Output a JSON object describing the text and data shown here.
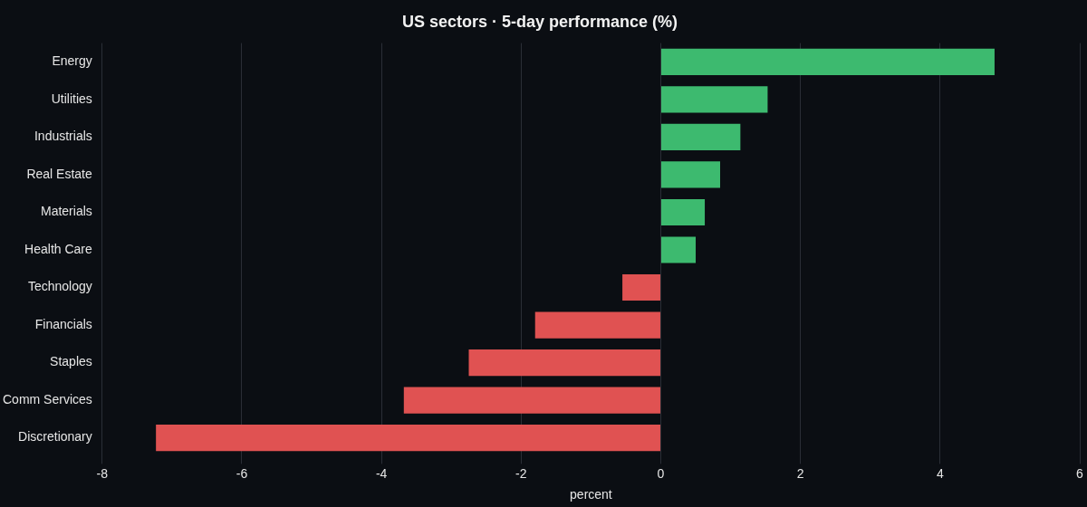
{
  "chart_data": {
    "type": "bar",
    "orientation": "horizontal",
    "title": "US sectors · 5-day performance (%)",
    "xlabel": "percent",
    "categories": [
      "Energy",
      "Utilities",
      "Industrials",
      "Real Estate",
      "Materials",
      "Health Care",
      "Technology",
      "Financials",
      "Staples",
      "Comm Services",
      "Discretionary"
    ],
    "values": [
      4.78,
      1.53,
      1.14,
      0.85,
      0.63,
      0.5,
      -0.55,
      -1.8,
      -2.75,
      -3.68,
      -7.23
    ],
    "colors": [
      "#3dba6f",
      "#3dba6f",
      "#3dba6f",
      "#3dba6f",
      "#3dba6f",
      "#3dba6f",
      "#e05252",
      "#e05252",
      "#e05252",
      "#e05252",
      "#e05252"
    ],
    "xlim": [
      -8,
      6
    ],
    "xticks": [
      -8,
      -6,
      -4,
      -2,
      0,
      2,
      4,
      6
    ],
    "grid": "x",
    "legend": false
  }
}
